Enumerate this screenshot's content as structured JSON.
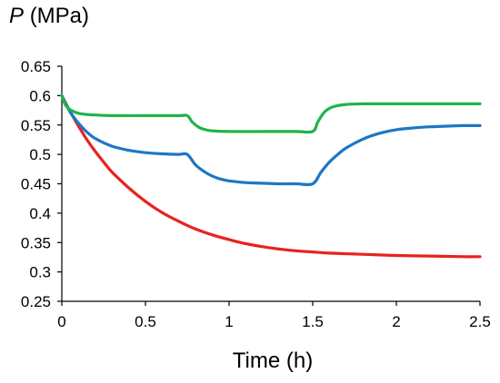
{
  "chart_data": {
    "type": "line",
    "ylabel_symbol": "P",
    "ylabel_unit": "(MPa)",
    "xlabel": "Time (h)",
    "xlim": [
      0,
      2.5
    ],
    "ylim": [
      0.25,
      0.65
    ],
    "xticks": [
      "0",
      "0.5",
      "1",
      "1.5",
      "2",
      "2.5"
    ],
    "yticks": [
      "0.25",
      "0.3",
      "0.35",
      "0.4",
      "0.45",
      "0.5",
      "0.55",
      "0.6",
      "0.65"
    ],
    "grid": false,
    "legend": "none",
    "series": [
      {
        "color": "#e8221e",
        "x": [
          0,
          0.05,
          0.1,
          0.15,
          0.2,
          0.25,
          0.3,
          0.4,
          0.5,
          0.6,
          0.7,
          0.8,
          0.9,
          1.0,
          1.1,
          1.2,
          1.3,
          1.4,
          1.5,
          1.6,
          1.8,
          2.0,
          2.2,
          2.4,
          2.5
        ],
        "y": [
          0.6,
          0.573,
          0.548,
          0.525,
          0.505,
          0.487,
          0.47,
          0.443,
          0.42,
          0.401,
          0.386,
          0.373,
          0.363,
          0.355,
          0.348,
          0.343,
          0.339,
          0.336,
          0.334,
          0.332,
          0.33,
          0.328,
          0.327,
          0.326,
          0.326
        ]
      },
      {
        "color": "#1f76c4",
        "x": [
          0,
          0.05,
          0.1,
          0.15,
          0.2,
          0.3,
          0.4,
          0.5,
          0.6,
          0.7,
          0.75,
          0.8,
          0.85,
          0.9,
          0.95,
          1.0,
          1.1,
          1.2,
          1.3,
          1.4,
          1.5,
          1.55,
          1.6,
          1.65,
          1.7,
          1.8,
          1.9,
          2.0,
          2.1,
          2.2,
          2.3,
          2.4,
          2.5
        ],
        "y": [
          0.6,
          0.572,
          0.553,
          0.538,
          0.527,
          0.514,
          0.507,
          0.503,
          0.501,
          0.5,
          0.5,
          0.482,
          0.471,
          0.463,
          0.458,
          0.455,
          0.452,
          0.451,
          0.45,
          0.45,
          0.45,
          0.47,
          0.487,
          0.5,
          0.511,
          0.526,
          0.536,
          0.542,
          0.545,
          0.547,
          0.548,
          0.549,
          0.549
        ]
      },
      {
        "color": "#1fb44a",
        "x": [
          0,
          0.02,
          0.05,
          0.1,
          0.15,
          0.2,
          0.3,
          0.5,
          0.7,
          0.75,
          0.78,
          0.82,
          0.86,
          0.9,
          1.0,
          1.2,
          1.4,
          1.5,
          1.53,
          1.57,
          1.62,
          1.7,
          1.8,
          2.0,
          2.5
        ],
        "y": [
          0.6,
          0.585,
          0.576,
          0.57,
          0.568,
          0.567,
          0.566,
          0.566,
          0.566,
          0.566,
          0.555,
          0.546,
          0.542,
          0.54,
          0.539,
          0.539,
          0.539,
          0.539,
          0.555,
          0.572,
          0.581,
          0.585,
          0.586,
          0.586,
          0.586
        ]
      }
    ]
  }
}
